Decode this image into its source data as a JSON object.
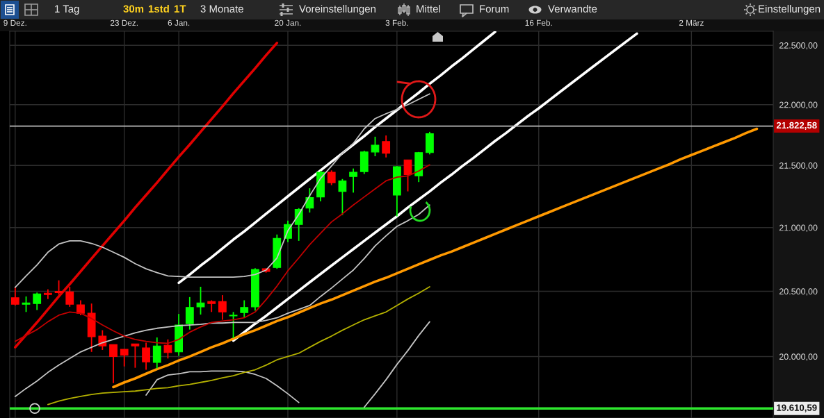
{
  "chart_data": {
    "type": "candlestick",
    "categories": [
      "9 Dez.",
      null,
      null,
      null,
      null,
      null,
      null,
      null,
      null,
      null,
      "23 Dez.",
      null,
      null,
      null,
      null,
      "6 Jan.",
      null,
      null,
      null,
      null,
      null,
      null,
      null,
      null,
      null,
      "20 Jan.",
      null,
      null,
      null,
      null,
      null,
      null,
      null,
      null,
      null,
      "3 Feb.",
      null,
      null,
      null,
      null,
      null,
      null,
      null,
      null,
      null,
      null,
      null,
      null,
      "16 Feb.",
      null,
      null,
      null,
      null,
      null,
      null,
      null,
      null,
      null,
      null,
      null,
      null,
      null,
      "2 März",
      null,
      null,
      null,
      null,
      null,
      null,
      null
    ],
    "ohlc": [
      [
        20450,
        20535,
        20390,
        20400
      ],
      [
        20400,
        20460,
        20340,
        20410
      ],
      [
        20405,
        20490,
        20355,
        20480
      ],
      [
        20485,
        20515,
        20440,
        20475
      ],
      [
        20500,
        20585,
        20475,
        20490
      ],
      [
        20495,
        20535,
        20380,
        20400
      ],
      [
        20395,
        20430,
        20315,
        20330
      ],
      [
        20330,
        20405,
        20035,
        20150
      ],
      [
        20155,
        20200,
        20050,
        20080
      ],
      [
        20090,
        20090,
        19800,
        20000
      ],
      [
        20055,
        20055,
        19925,
        20010
      ],
      [
        20095,
        20095,
        19915,
        20080
      ],
      [
        20065,
        20105,
        19900,
        19960
      ],
      [
        19955,
        20145,
        19910,
        20080
      ],
      [
        20085,
        20130,
        19985,
        20030
      ],
      [
        20035,
        20325,
        20005,
        20240
      ],
      [
        20250,
        20455,
        20205,
        20375
      ],
      [
        20380,
        20535,
        20320,
        20410
      ],
      [
        20420,
        20430,
        20340,
        20405
      ],
      [
        20420,
        20470,
        20280,
        20340
      ],
      [
        20310,
        20340,
        20140,
        20315
      ],
      [
        20335,
        20430,
        20295,
        20375
      ],
      [
        20380,
        20680,
        20350,
        20670
      ],
      [
        20675,
        20680,
        20645,
        20655
      ],
      [
        20685,
        20945,
        20675,
        20915
      ],
      [
        20915,
        21055,
        20885,
        21025
      ],
      [
        21025,
        21155,
        20895,
        21145
      ],
      [
        21155,
        21315,
        21120,
        21240
      ],
      [
        21245,
        21455,
        21210,
        21445
      ],
      [
        21445,
        21460,
        21340,
        21360
      ],
      [
        21290,
        21390,
        21100,
        21375
      ],
      [
        21410,
        21475,
        21280,
        21445
      ],
      [
        21450,
        21620,
        21430,
        21610
      ],
      [
        21610,
        21735,
        21575,
        21665
      ],
      [
        21695,
        21745,
        21565,
        21600
      ],
      [
        21260,
        21495,
        21090,
        21490
      ],
      [
        21545,
        21545,
        21290,
        21425
      ],
      [
        21415,
        21610,
        21365,
        21605
      ],
      [
        21605,
        21775,
        21590,
        21760
      ],
      null,
      null,
      null,
      null,
      null,
      null,
      null,
      null,
      null,
      null,
      null,
      null,
      null,
      null,
      null,
      null,
      null,
      null,
      null,
      null,
      null,
      null,
      null,
      null,
      null,
      null,
      null,
      null,
      null,
      null,
      null
    ],
    "colors": [
      "#ff0000",
      "#00ff00",
      "#00ff00",
      "#ff0000",
      "#ff0000",
      "#ff0000",
      "#ff0000",
      "#ff0000",
      "#ff0000",
      "#ff0000",
      "#ff0000",
      "#ff0000",
      "#ff0000",
      "#00ff00",
      "#ff0000",
      "#00ff00",
      "#00ff00",
      "#00ff00",
      "#ff0000",
      "#ff0000",
      "#00ff00",
      "#00ff00",
      "#00ff00",
      "#ff0000",
      "#00ff00",
      "#00ff00",
      "#00ff00",
      "#00ff00",
      "#00ff00",
      "#ff0000",
      "#00ff00",
      "#00ff00",
      "#00ff00",
      "#00ff00",
      "#ff0000",
      "#00ff00",
      "#ff0000",
      "#00ff00",
      "#00ff00",
      null,
      null,
      null,
      null,
      null,
      null,
      null,
      null,
      null,
      null,
      null,
      null,
      null,
      null,
      null,
      null,
      null,
      null,
      null,
      null,
      null,
      null,
      null,
      null,
      null,
      null,
      null,
      null,
      null,
      null,
      null
    ],
    "series": [
      {
        "type": "line",
        "color": "#c4c4c4",
        "values": [
          20530,
          20620,
          20705,
          20805,
          20870,
          20895,
          20895,
          20875,
          20845,
          20805,
          20765,
          20715,
          20675,
          20645,
          20620,
          20615,
          20610,
          20610,
          20610,
          20610,
          20610,
          20615,
          20630,
          20665,
          20760,
          20975,
          21105,
          21255,
          21395,
          21495,
          21600,
          21680,
          21800,
          21885,
          21925,
          21960,
          22000,
          22045,
          22090,
          null,
          null,
          null,
          null,
          null,
          null,
          null,
          null,
          null,
          null,
          null,
          null,
          null,
          null,
          null,
          null,
          null,
          null,
          null,
          null,
          null,
          null,
          null,
          null,
          null,
          null,
          null,
          null,
          null,
          null,
          null
        ]
      },
      {
        "type": "line",
        "color": "#c4c4c4",
        "values": [
          19700,
          19760,
          19815,
          19880,
          19935,
          19985,
          20035,
          20070,
          20105,
          20130,
          20155,
          20180,
          20200,
          20215,
          20225,
          20235,
          20240,
          20245,
          20255,
          20255,
          20260,
          20260,
          20260,
          20275,
          20295,
          20330,
          20360,
          20390,
          20460,
          20525,
          20595,
          20665,
          20755,
          20855,
          20935,
          21010,
          21055,
          21105,
          21180,
          null,
          null,
          null,
          null,
          null,
          null,
          null,
          null,
          null,
          null,
          null,
          null,
          null,
          null,
          null,
          null,
          null,
          null,
          null,
          null,
          null,
          null,
          null,
          null,
          null,
          null,
          null,
          null,
          null,
          null,
          null
        ]
      },
      {
        "type": "line",
        "color": "#c4c4c4",
        "values": [
          null,
          null,
          null,
          null,
          null,
          null,
          null,
          null,
          null,
          null,
          null,
          null,
          19710,
          19825,
          19860,
          19870,
          19885,
          19885,
          19890,
          19890,
          19890,
          19885,
          19865,
          19835,
          19780,
          19720,
          19655,
          null,
          null,
          null,
          null,
          null,
          19620,
          19720,
          19825,
          19940,
          20045,
          20160,
          20265,
          null,
          null,
          null,
          null,
          null,
          null,
          null,
          null,
          null,
          null,
          null,
          null,
          null,
          null,
          null,
          null,
          null,
          null,
          null,
          null,
          null,
          null,
          null,
          null,
          null,
          null,
          null,
          null,
          null,
          null,
          null
        ]
      },
      {
        "type": "line",
        "color": "#c00000",
        "values": [
          20115,
          20160,
          20205,
          20265,
          20315,
          20340,
          20330,
          20290,
          20240,
          20195,
          20155,
          20130,
          20115,
          20105,
          20100,
          20130,
          20185,
          20225,
          20260,
          20270,
          20280,
          20295,
          20340,
          20435,
          20540,
          20660,
          20760,
          20865,
          20955,
          21045,
          21110,
          21180,
          21245,
          21310,
          21375,
          21405,
          21415,
          21455,
          21505,
          null,
          null,
          null,
          null,
          null,
          null,
          null,
          null,
          null,
          null,
          null,
          null,
          null,
          null,
          null,
          null,
          null,
          null,
          null,
          null,
          null,
          null,
          null,
          null,
          null,
          null,
          null,
          null,
          null,
          null,
          null
        ]
      },
      {
        "type": "line",
        "color": "#b3b000",
        "values": [
          null,
          null,
          null,
          19640,
          19665,
          19685,
          19700,
          19715,
          19725,
          19730,
          19735,
          19740,
          19750,
          19760,
          19765,
          19780,
          19790,
          19805,
          19820,
          19840,
          19855,
          19880,
          19900,
          19935,
          19975,
          20000,
          20025,
          20070,
          20115,
          20155,
          20200,
          20240,
          20280,
          20310,
          20340,
          20390,
          20440,
          20485,
          20535,
          null,
          null,
          null,
          null,
          null,
          null,
          null,
          null,
          null,
          null,
          null,
          null,
          null,
          null,
          null,
          null,
          null,
          null,
          null,
          null,
          null,
          null,
          null,
          null,
          null,
          null,
          null,
          null,
          null,
          null,
          null
        ]
      },
      {
        "type": "line",
        "color": "#e00000",
        "values": [
          20070,
          20165,
          20260,
          20360,
          20460,
          20555,
          20655,
          20755,
          20855,
          20955,
          21055,
          21160,
          21260,
          21360,
          21465,
          21570,
          21670,
          21775,
          21880,
          21985,
          22095,
          22200,
          22305,
          22415,
          22520,
          null,
          null,
          null,
          null,
          null,
          null,
          null,
          null,
          null,
          null,
          null,
          null,
          null,
          null,
          null,
          null,
          null,
          null,
          null,
          null,
          null,
          null,
          null,
          null,
          null,
          null,
          null,
          null,
          null,
          null,
          null,
          null,
          null,
          null,
          null,
          null,
          null,
          null,
          null,
          null,
          null,
          null,
          null,
          null,
          null
        ]
      },
      {
        "type": "line",
        "color": "#ffffff",
        "values": [
          null,
          null,
          null,
          null,
          null,
          null,
          null,
          null,
          null,
          null,
          null,
          null,
          null,
          null,
          null,
          20565,
          20630,
          20700,
          20765,
          20835,
          20905,
          20970,
          21040,
          21110,
          21180,
          21250,
          21320,
          21390,
          21460,
          21530,
          21600,
          21670,
          21740,
          21815,
          21885,
          21955,
          22030,
          22100,
          22175,
          22245,
          22320,
          22390,
          22465,
          22540,
          22615,
          null,
          null,
          null,
          null,
          null,
          null,
          null,
          null,
          null,
          null,
          null,
          null,
          null,
          null,
          null,
          null,
          null,
          null,
          null,
          null,
          null,
          null,
          null,
          null,
          null
        ]
      },
      {
        "type": "line",
        "color": "#ffffff",
        "values": [
          null,
          null,
          null,
          null,
          null,
          null,
          null,
          null,
          null,
          null,
          null,
          null,
          null,
          null,
          null,
          null,
          null,
          null,
          null,
          null,
          20120,
          20185,
          20250,
          20310,
          20375,
          20440,
          20505,
          20570,
          20635,
          20700,
          20765,
          20830,
          20895,
          20960,
          21025,
          21090,
          21160,
          21225,
          21290,
          21360,
          21425,
          21495,
          21560,
          21630,
          21700,
          21765,
          21835,
          21905,
          21970,
          22040,
          22110,
          22180,
          22250,
          22320,
          22390,
          22460,
          22530,
          22600,
          null,
          null,
          null,
          null,
          null,
          null,
          null,
          null,
          null,
          null,
          null,
          null
        ]
      },
      {
        "type": "line",
        "color": "#ff9900",
        "values": [
          null,
          null,
          null,
          null,
          null,
          null,
          null,
          null,
          null,
          19770,
          19805,
          19835,
          19870,
          19905,
          19935,
          19970,
          20000,
          20035,
          20070,
          20100,
          20135,
          20170,
          20200,
          20235,
          20270,
          20300,
          20335,
          20370,
          20405,
          20435,
          20470,
          20505,
          20540,
          20575,
          20605,
          20640,
          20675,
          20710,
          20745,
          20780,
          20810,
          20845,
          20880,
          20915,
          20950,
          20985,
          21020,
          21055,
          21090,
          21125,
          21160,
          21195,
          21230,
          21265,
          21300,
          21335,
          21370,
          21405,
          21440,
          21475,
          21510,
          21550,
          21585,
          21620,
          21655,
          21690,
          21725,
          21765,
          21800,
          null
        ]
      }
    ],
    "ylim": [
      19540,
      22620
    ],
    "yticks": [
      {
        "value": 20000,
        "label": "20.000,00"
      },
      {
        "value": 20500,
        "label": "20.500,00"
      },
      {
        "value": 21000,
        "label": "21.000,00"
      },
      {
        "value": 21500,
        "label": "21.500,00"
      },
      {
        "value": 22000,
        "label": "22.000,00"
      },
      {
        "value": 22500,
        "label": "22.500,00"
      }
    ],
    "log": "y",
    "grid": true,
    "ref_lines": [
      {
        "axis": "y",
        "value": 21822.58,
        "label": "21.822,58",
        "color": "#bdbdbd"
      },
      {
        "axis": "y",
        "value": 19610.59,
        "label": "19.610,59",
        "color": "#2ee62e"
      }
    ],
    "annotations": [
      "1 Tag",
      "30m",
      "1std",
      "1T",
      "3 Monate",
      "Voreinstellungen",
      "Mittel",
      "Forum",
      "Verwandte",
      "Einstellungen"
    ]
  }
}
